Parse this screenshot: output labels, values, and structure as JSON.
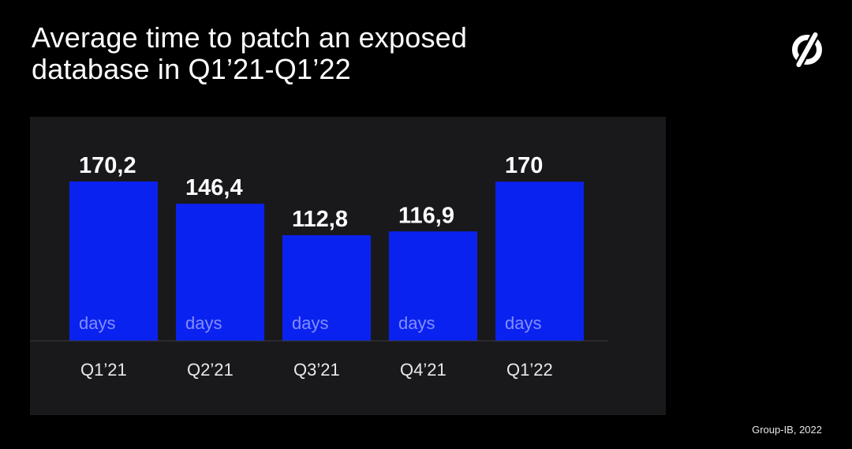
{
  "title": {
    "line1": "Average time to patch an exposed",
    "line2": "database in Q1’21-Q1’22"
  },
  "logo": {
    "icon": "group-ib-logo-icon"
  },
  "credit": "Group-IB, 2022",
  "colors": {
    "background": "#000000",
    "panel": "#19191c",
    "bar": "#0a22f0",
    "unit_text": "#9aa0ff"
  },
  "chart_data": {
    "type": "bar",
    "title": "Average time to patch an exposed database in Q1’21-Q1’22",
    "xlabel": "",
    "ylabel": "",
    "categories": [
      "Q1’21",
      "Q2’21",
      "Q3’21",
      "Q4’21",
      "Q1’22"
    ],
    "values": [
      170.2,
      146.4,
      112.8,
      116.9,
      170
    ],
    "value_labels": [
      "170,2",
      "146,4",
      "112,8",
      "116,9",
      "170"
    ],
    "unit_label": "days",
    "ylim": [
      0,
      170.2
    ],
    "grid": false,
    "legend": "none"
  }
}
